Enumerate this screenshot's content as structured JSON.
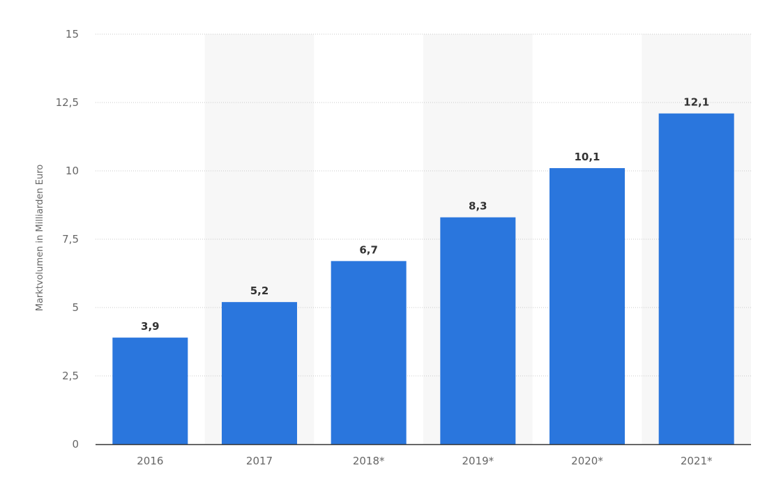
{
  "chart_data": {
    "type": "bar",
    "categories": [
      "2016",
      "2017",
      "2018*",
      "2019*",
      "2020*",
      "2021*"
    ],
    "values": [
      3.9,
      5.2,
      6.7,
      8.3,
      10.1,
      12.1
    ],
    "data_labels": [
      "3,9",
      "5,2",
      "6,7",
      "8,3",
      "10,1",
      "12,1"
    ],
    "title": "",
    "xlabel": "",
    "ylabel": "Marktvolumen in Milliarden Euro",
    "ylim": [
      0,
      15
    ],
    "yticks": [
      0,
      2.5,
      5,
      7.5,
      10,
      12.5,
      15
    ],
    "ytick_labels": [
      "0",
      "2,5",
      "5",
      "7,5",
      "10",
      "12,5",
      "15"
    ],
    "grid": true,
    "legend": "none",
    "colors": {
      "bar": "#2a76dd",
      "band": "#f7f7f7",
      "grid": "#c8c8c8",
      "axis": "#333333"
    }
  }
}
